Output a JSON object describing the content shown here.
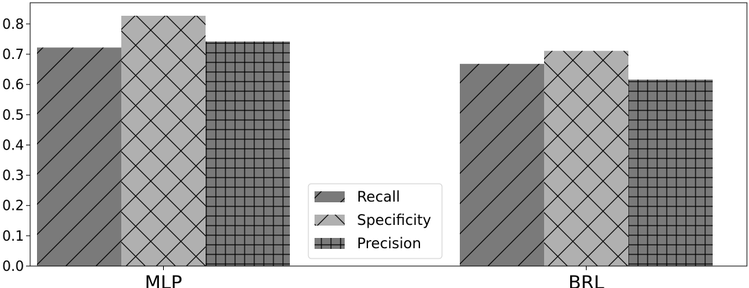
{
  "chart_data": {
    "type": "bar",
    "categories": [
      "MLP",
      "BRL"
    ],
    "series": [
      {
        "name": "Recall",
        "values": [
          0.722,
          0.668
        ],
        "color": "#7a7a7a",
        "hatch": "diagonal"
      },
      {
        "name": "Specificity",
        "values": [
          0.827,
          0.711
        ],
        "color": "#b0b0b0",
        "hatch": "crosshatch"
      },
      {
        "name": "Precision",
        "values": [
          0.742,
          0.616
        ],
        "color": "#7a7a7a",
        "hatch": "grid"
      }
    ],
    "ylim": [
      0,
      0.87
    ],
    "yticks": [
      "0.0",
      "0.1",
      "0.2",
      "0.3",
      "0.4",
      "0.5",
      "0.6",
      "0.7",
      "0.8"
    ],
    "grid": false,
    "legend_position": "bottom-center"
  }
}
